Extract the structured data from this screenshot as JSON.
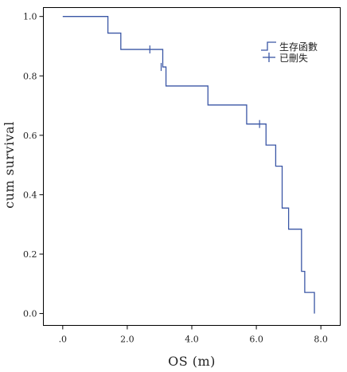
{
  "chart_data": {
    "type": "line",
    "subtype": "kaplan-meier-step",
    "xlabel": "OS (m)",
    "ylabel": "cum survival",
    "xlim": [
      -0.6,
      8.6
    ],
    "ylim": [
      -0.04,
      1.03
    ],
    "x_ticks": [
      0,
      2,
      4,
      6,
      8
    ],
    "x_tick_labels": [
      ".0",
      "2.0",
      "4.0",
      "6.0",
      "8.0"
    ],
    "y_ticks": [
      0,
      0.2,
      0.4,
      0.6,
      0.8,
      1.0
    ],
    "y_tick_labels": [
      "0.0",
      "0.2",
      "0.4",
      "0.6",
      "0.8",
      "1.0"
    ],
    "grid": false,
    "legend_position": "top-right",
    "line_color": "#3a56a5",
    "legend": {
      "survival_label": "生存函數",
      "censored_label": "已刪失"
    },
    "series": [
      {
        "name": "生存函數",
        "steps": [
          {
            "x": 0.0,
            "y": 1.0
          },
          {
            "x": 1.4,
            "y": 0.944
          },
          {
            "x": 1.8,
            "y": 0.889
          },
          {
            "x": 3.1,
            "y": 0.83
          },
          {
            "x": 3.2,
            "y": 0.766
          },
          {
            "x": 4.5,
            "y": 0.702
          },
          {
            "x": 5.7,
            "y": 0.638
          },
          {
            "x": 6.3,
            "y": 0.567
          },
          {
            "x": 6.6,
            "y": 0.496
          },
          {
            "x": 6.8,
            "y": 0.355
          },
          {
            "x": 7.0,
            "y": 0.284
          },
          {
            "x": 7.4,
            "y": 0.142
          },
          {
            "x": 7.5,
            "y": 0.071
          },
          {
            "x": 7.8,
            "y": 0.0
          }
        ],
        "end_x": 7.8
      },
      {
        "name": "已刪失",
        "censored": [
          {
            "x": 2.7,
            "y": 0.889
          },
          {
            "x": 3.05,
            "y": 0.83
          },
          {
            "x": 6.1,
            "y": 0.638
          }
        ]
      }
    ]
  }
}
